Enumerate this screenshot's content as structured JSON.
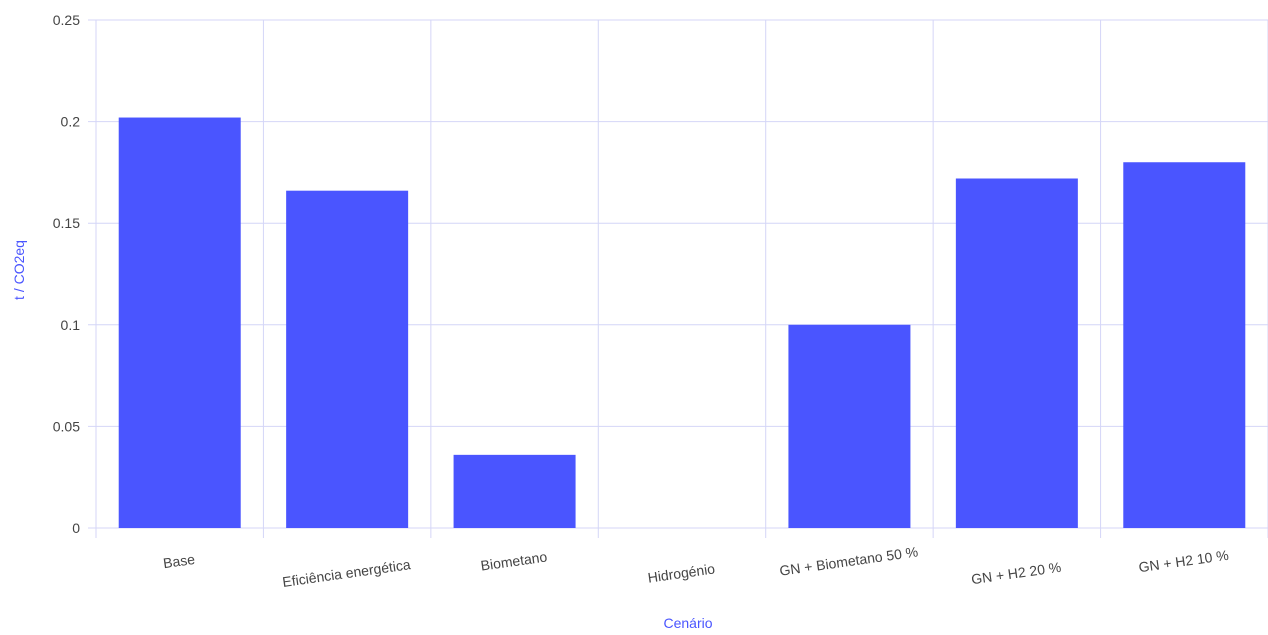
{
  "colors": {
    "bar": "#4a55ff",
    "grid": "#d4d6f7",
    "axis_title": "#4a55ff",
    "tick_text": "#444444"
  },
  "chart_data": {
    "type": "bar",
    "title": "",
    "xlabel": "Cenário",
    "ylabel": "t / CO2eq",
    "categories": [
      "Base",
      "Eficiência energética",
      "Biometano",
      "Hidrogénio",
      "GN + Biometano 50 %",
      "GN + H2  20 %",
      "GN + H2  10 %"
    ],
    "values": [
      0.202,
      0.166,
      0.036,
      0,
      0.1,
      0.172,
      0.18
    ],
    "ylim": [
      0,
      0.25
    ],
    "yticks": [
      "0",
      "0.05",
      "0.1",
      "0.15",
      "0.2",
      "0.25"
    ],
    "grid": true,
    "legend": "none"
  }
}
